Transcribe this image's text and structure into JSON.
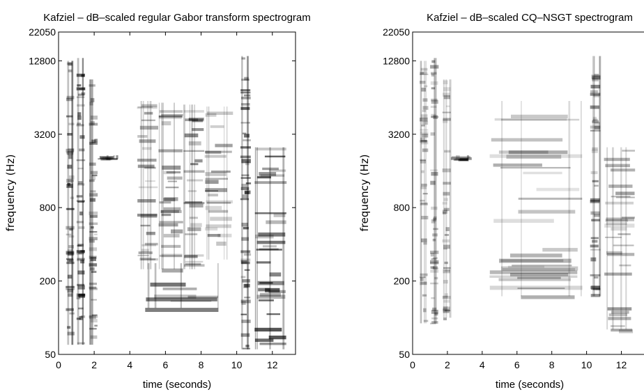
{
  "chart_data": [
    {
      "type": "heatmap",
      "title": "Kafziel – dB–scaled regular Gabor transform spectrogram",
      "xlabel": "time (seconds)",
      "ylabel": "frequency (Hz)",
      "xlim": [
        0,
        13.3
      ],
      "ylim": [
        50,
        22050
      ],
      "yscale": "log",
      "xticks": [
        0,
        2,
        4,
        6,
        8,
        10,
        12
      ],
      "yticks": [
        50,
        200,
        800,
        3200,
        12800,
        22050
      ],
      "colormap": "gray-inverted",
      "grid": false,
      "frame_rows": [
        0.5,
        1.1,
        1.8,
        5.0,
        6.0,
        7.0,
        8.0,
        9.0,
        10.5,
        11.4
      ],
      "events": [
        {
          "t0": 0.4,
          "t1": 0.9,
          "f0": 60,
          "f1": 12800,
          "level": 0.7
        },
        {
          "t0": 1.0,
          "t1": 1.5,
          "f0": 60,
          "f1": 13500,
          "level": 0.75
        },
        {
          "t0": 1.7,
          "t1": 2.2,
          "f0": 60,
          "f1": 9000,
          "level": 0.65
        },
        {
          "t0": 2.2,
          "t1": 3.4,
          "f0": 2000,
          "f1": 2150,
          "level": 0.8
        },
        {
          "t0": 4.4,
          "t1": 5.6,
          "f0": 250,
          "f1": 6000,
          "level": 0.55
        },
        {
          "t0": 5.6,
          "t1": 7.0,
          "f0": 250,
          "f1": 5800,
          "level": 0.6
        },
        {
          "t0": 7.0,
          "t1": 8.2,
          "f0": 250,
          "f1": 5600,
          "level": 0.6
        },
        {
          "t0": 8.2,
          "t1": 9.8,
          "f0": 300,
          "f1": 5400,
          "level": 0.55
        },
        {
          "t0": 4.8,
          "t1": 9.0,
          "f0": 120,
          "f1": 280,
          "level": 0.75
        },
        {
          "t0": 10.2,
          "t1": 10.8,
          "f0": 55,
          "f1": 14000,
          "level": 0.8
        },
        {
          "t0": 11.0,
          "t1": 12.8,
          "f0": 55,
          "f1": 2500,
          "level": 0.85
        }
      ]
    },
    {
      "type": "heatmap",
      "title": "Kafziel – dB–scaled CQ–NSGT spectrogram",
      "xlabel": "time (seconds)",
      "ylabel": "frequency (Hz)",
      "xlim": [
        0,
        13.3
      ],
      "ylim": [
        50,
        22050
      ],
      "yscale": "log",
      "xticks": [
        0,
        2,
        4,
        6,
        8,
        10,
        12
      ],
      "yticks": [
        50,
        200,
        800,
        3200,
        12800,
        22050
      ],
      "colormap": "gray-inverted",
      "grid": false,
      "events": [
        {
          "t0": 0.4,
          "t1": 0.9,
          "f0": 90,
          "f1": 12800,
          "level": 0.45
        },
        {
          "t0": 1.0,
          "t1": 1.5,
          "f0": 90,
          "f1": 13500,
          "level": 0.5
        },
        {
          "t0": 1.7,
          "t1": 2.2,
          "f0": 100,
          "f1": 9000,
          "level": 0.45
        },
        {
          "t0": 2.2,
          "t1": 3.4,
          "f0": 2000,
          "f1": 2150,
          "level": 0.7
        },
        {
          "t0": 4.4,
          "t1": 9.8,
          "f0": 150,
          "f1": 6000,
          "level": 0.4
        },
        {
          "t0": 10.2,
          "t1": 10.8,
          "f0": 150,
          "f1": 14000,
          "level": 0.6
        },
        {
          "t0": 11.0,
          "t1": 12.8,
          "f0": 80,
          "f1": 2500,
          "level": 0.5
        }
      ]
    }
  ]
}
